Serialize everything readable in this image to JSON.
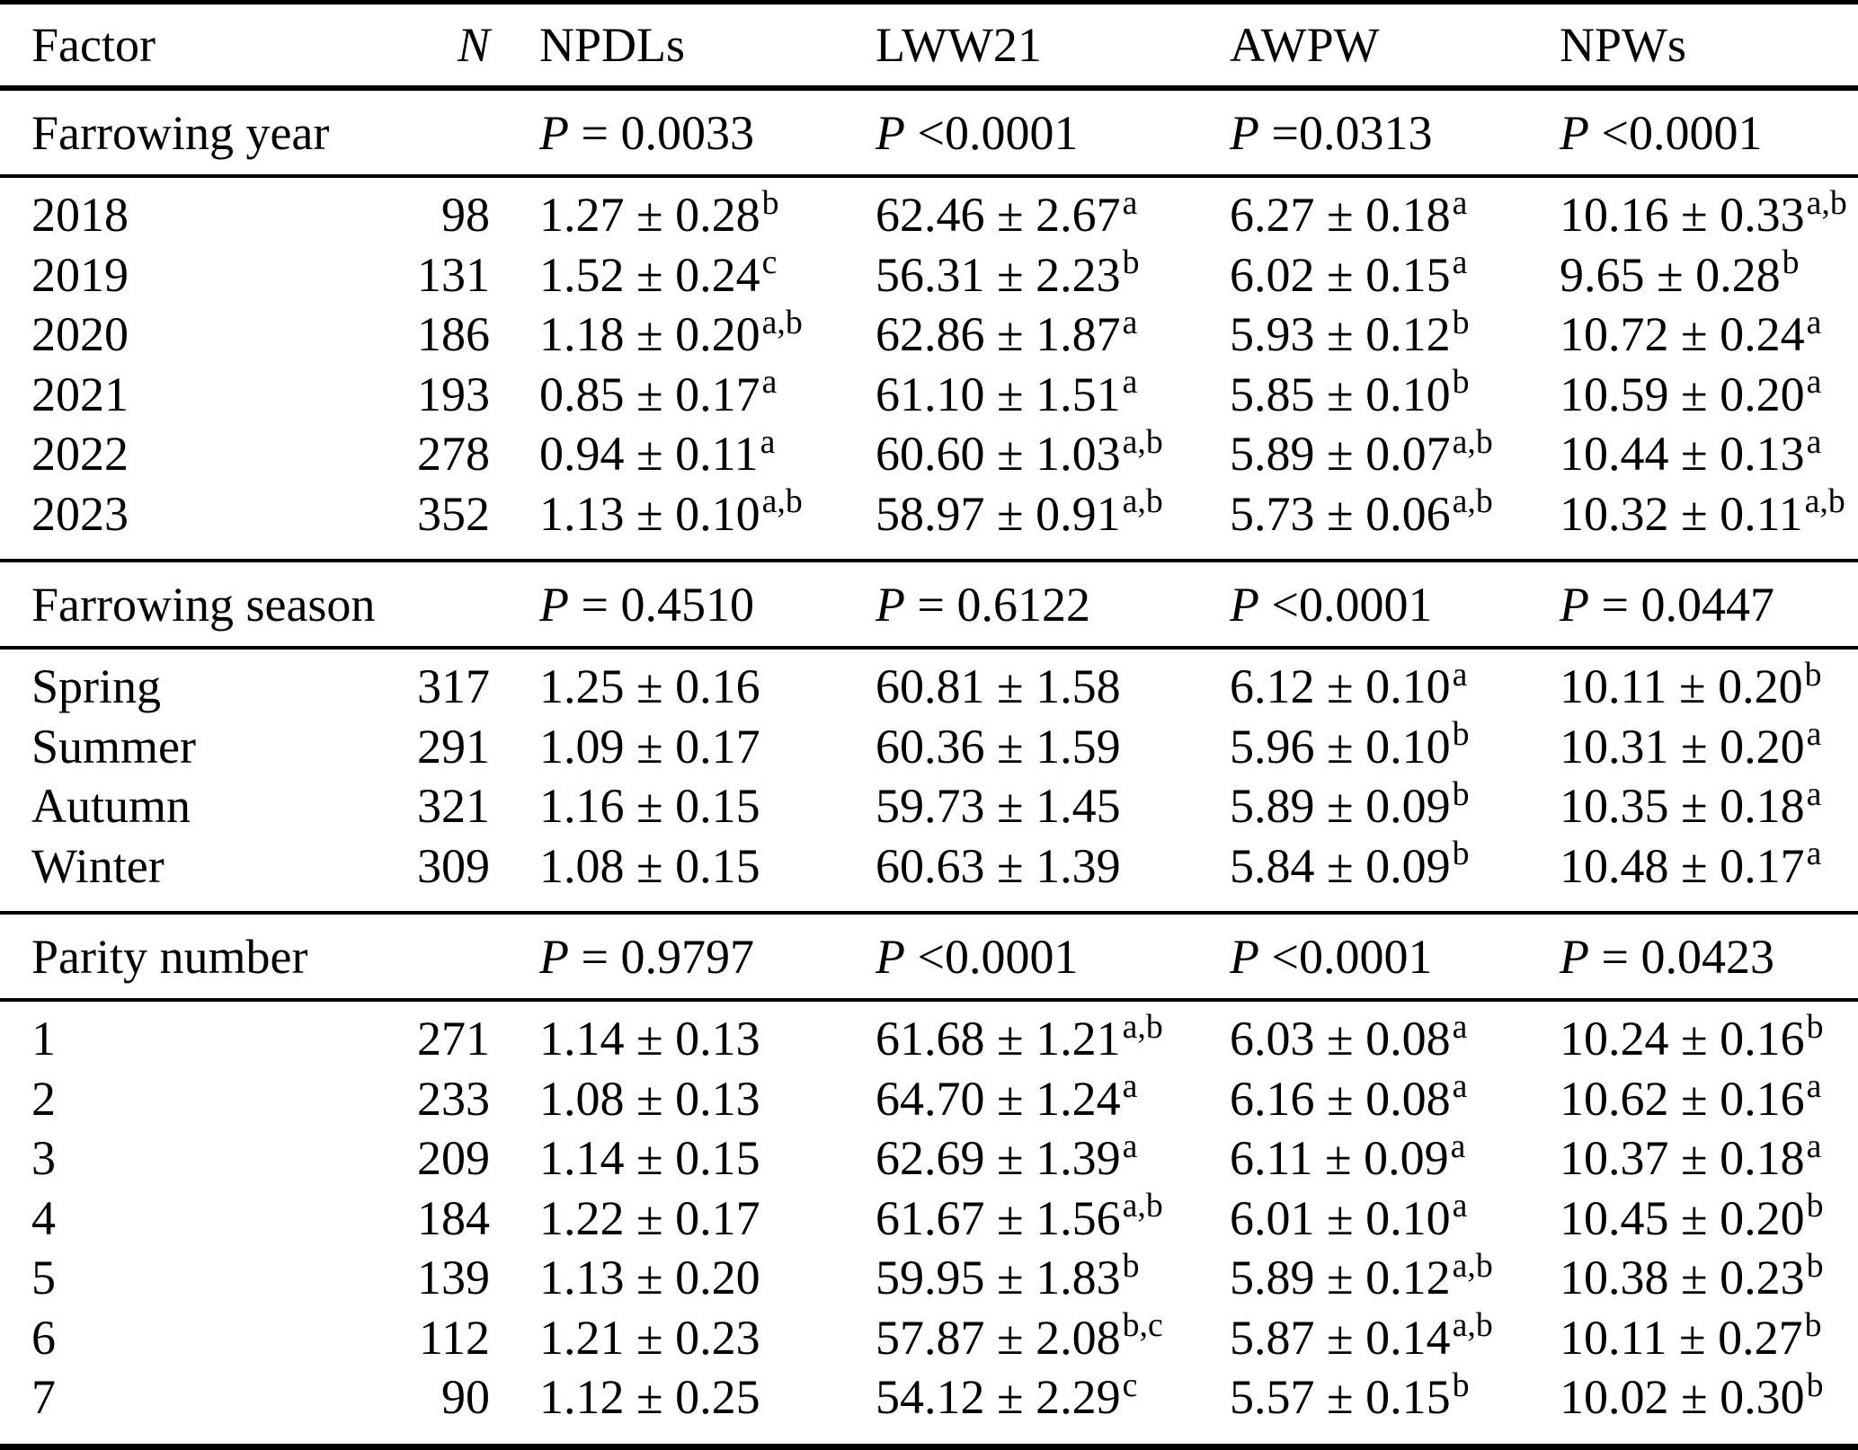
{
  "table": {
    "p_symbol": "P",
    "header": {
      "cols": [
        "Factor",
        "N",
        "NPDLs",
        "LWW21",
        "AWPW",
        "NPWs"
      ]
    },
    "sections": [
      {
        "label": "Farrowing year",
        "p_values": [
          "= 0.0033",
          "<0.0001",
          "=0.0313",
          "<0.0001"
        ],
        "rows": [
          {
            "factor": "2018",
            "n": "98",
            "cells": [
              {
                "v": "1.27 ± 0.28",
                "s": "b"
              },
              {
                "v": "62.46 ± 2.67",
                "s": "a"
              },
              {
                "v": "6.27 ± 0.18",
                "s": "a"
              },
              {
                "v": "10.16 ± 0.33",
                "s": "a,b"
              }
            ]
          },
          {
            "factor": "2019",
            "n": "131",
            "cells": [
              {
                "v": "1.52 ± 0.24",
                "s": "c"
              },
              {
                "v": "56.31 ± 2.23",
                "s": "b"
              },
              {
                "v": "6.02 ± 0.15",
                "s": "a"
              },
              {
                "v": "9.65 ± 0.28",
                "s": "b"
              }
            ]
          },
          {
            "factor": "2020",
            "n": "186",
            "cells": [
              {
                "v": "1.18 ± 0.20",
                "s": "a,b"
              },
              {
                "v": "62.86 ± 1.87",
                "s": "a"
              },
              {
                "v": "5.93 ± 0.12",
                "s": "b"
              },
              {
                "v": "10.72 ± 0.24",
                "s": "a"
              }
            ]
          },
          {
            "factor": "2021",
            "n": "193",
            "cells": [
              {
                "v": "0.85 ± 0.17",
                "s": "a"
              },
              {
                "v": "61.10 ± 1.51",
                "s": "a"
              },
              {
                "v": "5.85 ± 0.10",
                "s": "b"
              },
              {
                "v": "10.59 ± 0.20",
                "s": "a"
              }
            ]
          },
          {
            "factor": "2022",
            "n": "278",
            "cells": [
              {
                "v": "0.94 ± 0.11",
                "s": "a"
              },
              {
                "v": "60.60 ± 1.03",
                "s": "a,b"
              },
              {
                "v": "5.89 ± 0.07",
                "s": "a,b"
              },
              {
                "v": "10.44 ± 0.13",
                "s": "a"
              }
            ]
          },
          {
            "factor": "2023",
            "n": "352",
            "cells": [
              {
                "v": "1.13 ± 0.10",
                "s": "a,b"
              },
              {
                "v": "58.97 ± 0.91",
                "s": "a,b"
              },
              {
                "v": "5.73 ± 0.06",
                "s": "a,b"
              },
              {
                "v": "10.32 ± 0.11",
                "s": "a,b"
              }
            ]
          }
        ]
      },
      {
        "label": "Farrowing season",
        "p_values": [
          "= 0.4510",
          "= 0.6122",
          "<0.0001",
          "= 0.0447"
        ],
        "rows": [
          {
            "factor": "Spring",
            "n": "317",
            "cells": [
              {
                "v": "1.25 ± 0.16",
                "s": ""
              },
              {
                "v": "60.81 ± 1.58",
                "s": ""
              },
              {
                "v": "6.12 ± 0.10",
                "s": "a"
              },
              {
                "v": "10.11 ± 0.20",
                "s": "b"
              }
            ]
          },
          {
            "factor": "Summer",
            "n": "291",
            "cells": [
              {
                "v": "1.09 ± 0.17",
                "s": ""
              },
              {
                "v": "60.36 ± 1.59",
                "s": ""
              },
              {
                "v": "5.96 ± 0.10",
                "s": "b"
              },
              {
                "v": "10.31 ± 0.20",
                "s": "a"
              }
            ]
          },
          {
            "factor": "Autumn",
            "n": "321",
            "cells": [
              {
                "v": "1.16 ± 0.15",
                "s": ""
              },
              {
                "v": "59.73 ± 1.45",
                "s": ""
              },
              {
                "v": "5.89 ± 0.09",
                "s": "b"
              },
              {
                "v": "10.35 ± 0.18",
                "s": "a"
              }
            ]
          },
          {
            "factor": "Winter",
            "n": "309",
            "cells": [
              {
                "v": "1.08 ± 0.15",
                "s": ""
              },
              {
                "v": "60.63 ± 1.39",
                "s": ""
              },
              {
                "v": "5.84 ± 0.09",
                "s": "b"
              },
              {
                "v": "10.48 ± 0.17",
                "s": "a"
              }
            ]
          }
        ]
      },
      {
        "label": "Parity number",
        "p_values": [
          "= 0.9797",
          "<0.0001",
          "<0.0001",
          "= 0.0423"
        ],
        "rows": [
          {
            "factor": "1",
            "n": "271",
            "cells": [
              {
                "v": "1.14 ± 0.13",
                "s": ""
              },
              {
                "v": "61.68 ± 1.21",
                "s": "a,b"
              },
              {
                "v": "6.03 ± 0.08",
                "s": "a"
              },
              {
                "v": "10.24 ± 0.16",
                "s": "b"
              }
            ]
          },
          {
            "factor": "2",
            "n": "233",
            "cells": [
              {
                "v": "1.08 ± 0.13",
                "s": ""
              },
              {
                "v": "64.70 ± 1.24",
                "s": "a"
              },
              {
                "v": "6.16 ± 0.08",
                "s": "a"
              },
              {
                "v": "10.62 ± 0.16",
                "s": "a"
              }
            ]
          },
          {
            "factor": "3",
            "n": "209",
            "cells": [
              {
                "v": "1.14 ± 0.15",
                "s": ""
              },
              {
                "v": "62.69 ± 1.39",
                "s": "a"
              },
              {
                "v": "6.11 ± 0.09",
                "s": "a"
              },
              {
                "v": "10.37 ± 0.18",
                "s": "a"
              }
            ]
          },
          {
            "factor": "4",
            "n": "184",
            "cells": [
              {
                "v": "1.22 ± 0.17",
                "s": ""
              },
              {
                "v": "61.67 ± 1.56",
                "s": "a,b"
              },
              {
                "v": "6.01 ± 0.10",
                "s": "a"
              },
              {
                "v": "10.45 ± 0.20",
                "s": "b"
              }
            ]
          },
          {
            "factor": "5",
            "n": "139",
            "cells": [
              {
                "v": "1.13 ± 0.20",
                "s": ""
              },
              {
                "v": "59.95 ± 1.83",
                "s": "b"
              },
              {
                "v": "5.89 ± 0.12",
                "s": "a,b"
              },
              {
                "v": "10.38 ± 0.23",
                "s": "b"
              }
            ]
          },
          {
            "factor": "6",
            "n": "112",
            "cells": [
              {
                "v": "1.21 ± 0.23",
                "s": ""
              },
              {
                "v": "57.87 ± 2.08",
                "s": "b,c"
              },
              {
                "v": "5.87 ± 0.14",
                "s": "a,b"
              },
              {
                "v": "10.11 ± 0.27",
                "s": "b"
              }
            ]
          },
          {
            "factor": "7",
            "n": "90",
            "cells": [
              {
                "v": "1.12 ± 0.25",
                "s": ""
              },
              {
                "v": "54.12 ± 2.29",
                "s": "c"
              },
              {
                "v": "5.57 ± 0.15",
                "s": "b"
              },
              {
                "v": "10.02 ± 0.30",
                "s": "b"
              }
            ]
          }
        ]
      }
    ]
  }
}
